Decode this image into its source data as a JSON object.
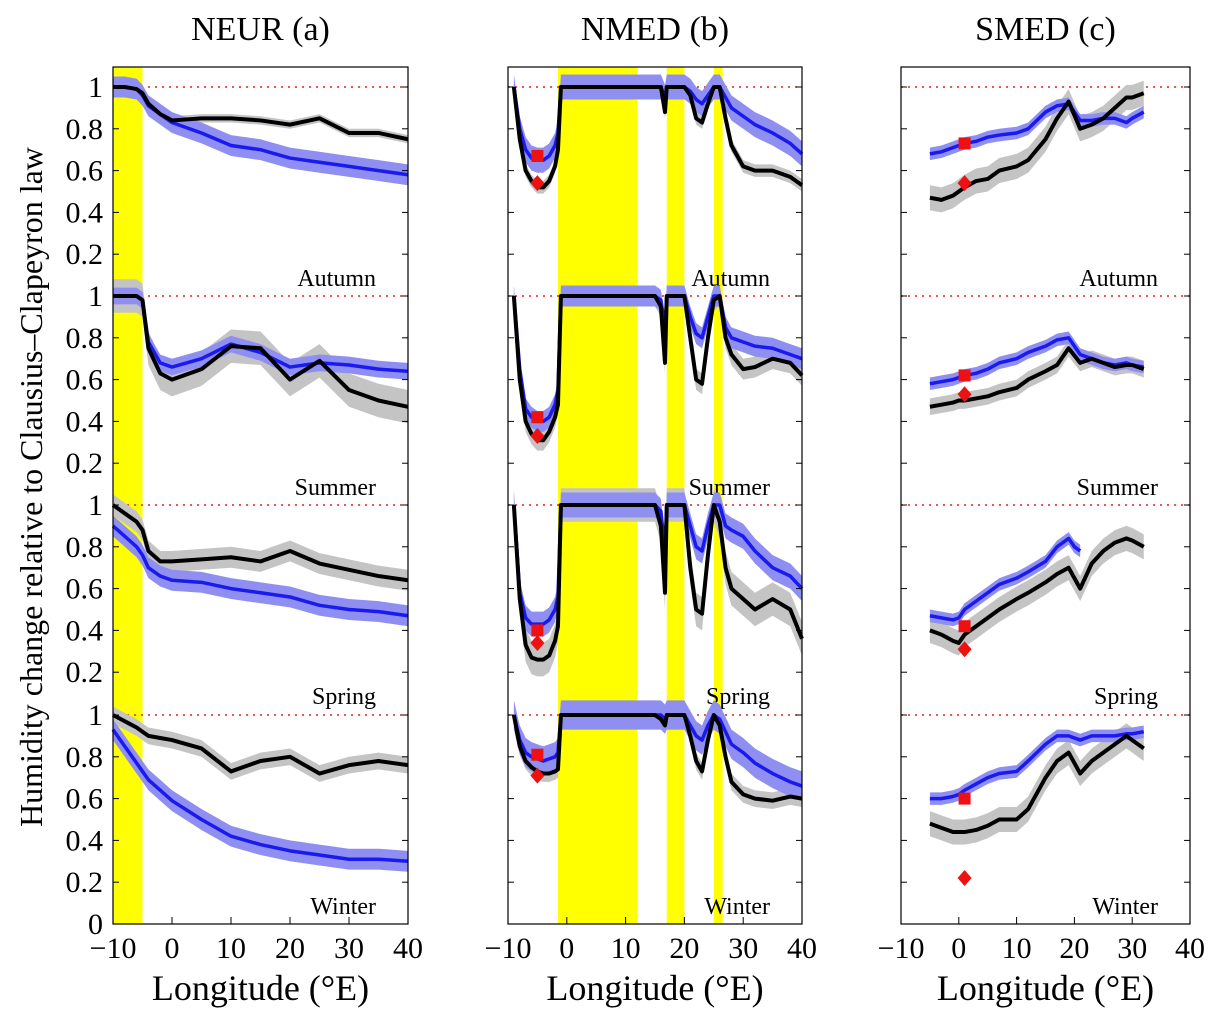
{
  "chart_data": [
    {
      "type": "line",
      "title": "NEUR (a)",
      "xlabel": "Longitude (°E)",
      "ylabel": "Humidity change relative to Clausius–Clapeyron law",
      "xlim": [
        -10,
        40
      ],
      "xticks": [
        "−10",
        "0",
        "10",
        "20",
        "30",
        "40"
      ],
      "yticks": [
        "0",
        "0.2",
        "0.4",
        "0.6",
        "0.8",
        "1"
      ],
      "reference_line": 1,
      "shaded_bands": [
        [
          -10,
          -5
        ]
      ],
      "colors": {
        "blue": "#1a1aee",
        "blue_band": "#8f8ff2",
        "black": "#000000",
        "gray_band": "#c4c4c4",
        "yellow": "#ffff00",
        "marker": "#ee1111"
      },
      "panels": [
        {
          "season": "Autumn",
          "x": [
            -10,
            -8,
            -6,
            -5,
            -4,
            -2,
            0,
            5,
            10,
            15,
            20,
            25,
            30,
            35,
            40
          ],
          "black": [
            1.0,
            1.0,
            0.99,
            0.97,
            0.92,
            0.87,
            0.84,
            0.85,
            0.85,
            0.84,
            0.82,
            0.85,
            0.78,
            0.78,
            0.75
          ],
          "blue": [
            1.0,
            1.0,
            0.99,
            0.96,
            0.91,
            0.87,
            0.83,
            0.78,
            0.72,
            0.7,
            0.66,
            0.64,
            0.62,
            0.6,
            0.58
          ],
          "blue_err": 0.05,
          "black_err": 0.02
        },
        {
          "season": "Summer",
          "x": [
            -10,
            -8,
            -6,
            -5,
            -4,
            -2,
            0,
            5,
            10,
            15,
            20,
            25,
            30,
            35,
            40
          ],
          "black": [
            1.0,
            1.0,
            1.0,
            0.98,
            0.75,
            0.63,
            0.6,
            0.65,
            0.76,
            0.75,
            0.6,
            0.69,
            0.55,
            0.5,
            0.47
          ],
          "blue": [
            1.0,
            1.0,
            1.0,
            0.98,
            0.78,
            0.68,
            0.66,
            0.7,
            0.77,
            0.73,
            0.66,
            0.68,
            0.67,
            0.65,
            0.64
          ],
          "blue_err": 0.04,
          "black_err": 0.08
        },
        {
          "season": "Spring",
          "x": [
            -10,
            -8,
            -6,
            -5,
            -4,
            -2,
            0,
            5,
            10,
            15,
            20,
            25,
            30,
            35,
            40
          ],
          "black": [
            1.0,
            0.96,
            0.92,
            0.88,
            0.78,
            0.73,
            0.73,
            0.74,
            0.75,
            0.73,
            0.78,
            0.72,
            0.69,
            0.66,
            0.64
          ],
          "blue": [
            0.9,
            0.85,
            0.8,
            0.76,
            0.7,
            0.66,
            0.64,
            0.63,
            0.6,
            0.58,
            0.56,
            0.52,
            0.5,
            0.49,
            0.47
          ],
          "blue_err": 0.05,
          "black_err": 0.05
        },
        {
          "season": "Winter",
          "x": [
            -10,
            -8,
            -6,
            -5,
            -4,
            -2,
            0,
            5,
            10,
            15,
            20,
            25,
            30,
            35,
            40
          ],
          "black": [
            1.0,
            0.97,
            0.94,
            0.92,
            0.9,
            0.89,
            0.88,
            0.84,
            0.73,
            0.78,
            0.8,
            0.72,
            0.76,
            0.78,
            0.76
          ],
          "blue": [
            0.93,
            0.85,
            0.77,
            0.73,
            0.69,
            0.64,
            0.59,
            0.5,
            0.42,
            0.38,
            0.35,
            0.33,
            0.31,
            0.31,
            0.3
          ],
          "blue_err": 0.05,
          "black_err": 0.04
        }
      ]
    },
    {
      "type": "line",
      "title": "NMED (b)",
      "xlabel": "Longitude (°E)",
      "xlim": [
        -10,
        40
      ],
      "xticks": [
        "−10",
        "0",
        "10",
        "20",
        "30",
        "40"
      ],
      "reference_line": 1,
      "shaded_bands": [
        [
          -1.5,
          12
        ],
        [
          17,
          20
        ],
        [
          25,
          26.5
        ]
      ],
      "panels": [
        {
          "season": "Autumn",
          "x": [
            -9,
            -8,
            -7,
            -6,
            -5,
            -4,
            -3,
            -2,
            -1.5,
            -1,
            0,
            5,
            10,
            15,
            16,
            16.7,
            17,
            18,
            19,
            20,
            21,
            22,
            23,
            24,
            25,
            26,
            27,
            28,
            30,
            32,
            35,
            38,
            40
          ],
          "black": [
            1.0,
            0.75,
            0.6,
            0.55,
            0.52,
            0.52,
            0.55,
            0.62,
            0.7,
            1.0,
            1.0,
            1.0,
            1.0,
            1.0,
            1.0,
            0.88,
            1.0,
            1.0,
            1.0,
            1.0,
            0.96,
            0.85,
            0.83,
            0.92,
            1.0,
            1.0,
            0.85,
            0.72,
            0.62,
            0.6,
            0.6,
            0.57,
            0.53
          ],
          "blue": [
            1.0,
            0.8,
            0.7,
            0.66,
            0.65,
            0.65,
            0.67,
            0.72,
            0.78,
            1.0,
            1.0,
            1.0,
            1.0,
            1.0,
            1.0,
            0.95,
            1.0,
            1.0,
            1.0,
            1.0,
            0.98,
            0.94,
            0.92,
            0.96,
            1.0,
            1.0,
            0.95,
            0.9,
            0.86,
            0.82,
            0.78,
            0.73,
            0.68
          ],
          "square": [
            -5,
            0.67
          ],
          "diamond": [
            -5,
            0.54
          ],
          "blue_err": 0.06,
          "black_err": 0.03
        },
        {
          "season": "Summer",
          "x": [
            -9,
            -8,
            -7,
            -6,
            -5,
            -4,
            -3,
            -2,
            -1.5,
            -1,
            0,
            5,
            10,
            15,
            16,
            16.7,
            17,
            18,
            19,
            20,
            21,
            22,
            23,
            24,
            25,
            26,
            27,
            28,
            30,
            32,
            35,
            38,
            40
          ],
          "black": [
            1.0,
            0.6,
            0.4,
            0.34,
            0.31,
            0.31,
            0.35,
            0.42,
            0.48,
            1.0,
            1.0,
            1.0,
            1.0,
            1.0,
            0.95,
            0.68,
            1.0,
            1.0,
            1.0,
            1.0,
            0.8,
            0.6,
            0.58,
            0.8,
            0.98,
            1.0,
            0.8,
            0.72,
            0.65,
            0.66,
            0.7,
            0.68,
            0.62
          ],
          "blue": [
            1.0,
            0.65,
            0.46,
            0.42,
            0.4,
            0.4,
            0.42,
            0.48,
            0.55,
            1.0,
            1.0,
            1.0,
            1.0,
            1.0,
            0.98,
            0.85,
            1.0,
            1.0,
            1.0,
            1.0,
            0.9,
            0.82,
            0.8,
            0.9,
            1.0,
            1.0,
            0.85,
            0.8,
            0.78,
            0.76,
            0.75,
            0.72,
            0.7
          ],
          "square": [
            -5,
            0.42
          ],
          "diamond": [
            -5,
            0.33
          ],
          "blue_err": 0.05,
          "black_err": 0.05
        },
        {
          "season": "Spring",
          "x": [
            -9,
            -8,
            -7,
            -6,
            -5,
            -4,
            -3,
            -2,
            -1.5,
            -1,
            0,
            5,
            10,
            15,
            16,
            16.7,
            17,
            18,
            19,
            20,
            21,
            22,
            23,
            24,
            25,
            26,
            27,
            28,
            30,
            32,
            35,
            38,
            40
          ],
          "black": [
            1.0,
            0.55,
            0.33,
            0.27,
            0.26,
            0.26,
            0.28,
            0.35,
            0.42,
            1.0,
            1.0,
            1.0,
            1.0,
            1.0,
            0.9,
            0.58,
            1.0,
            1.0,
            1.0,
            1.0,
            0.7,
            0.5,
            0.48,
            0.76,
            1.0,
            0.92,
            0.7,
            0.6,
            0.55,
            0.5,
            0.55,
            0.5,
            0.36
          ],
          "blue": [
            1.0,
            0.58,
            0.46,
            0.43,
            0.43,
            0.43,
            0.45,
            0.5,
            0.56,
            1.0,
            1.0,
            1.0,
            1.0,
            1.0,
            0.97,
            0.78,
            1.0,
            1.0,
            1.0,
            1.0,
            0.9,
            0.8,
            0.78,
            0.9,
            1.0,
            1.0,
            0.9,
            0.88,
            0.85,
            0.78,
            0.7,
            0.66,
            0.6
          ],
          "square": [
            -5,
            0.4
          ],
          "diamond": [
            -5,
            0.34
          ],
          "blue_err": 0.06,
          "black_err": 0.08
        },
        {
          "season": "Winter",
          "x": [
            -9,
            -8,
            -7,
            -6,
            -5,
            -4,
            -3,
            -2,
            -1.5,
            -1,
            0,
            5,
            10,
            15,
            16,
            16.7,
            17,
            18,
            19,
            20,
            21,
            22,
            23,
            24,
            25,
            26,
            27,
            28,
            30,
            32,
            35,
            38,
            40
          ],
          "black": [
            1.0,
            0.85,
            0.78,
            0.75,
            0.73,
            0.72,
            0.72,
            0.73,
            0.74,
            1.0,
            1.0,
            1.0,
            1.0,
            1.0,
            0.98,
            0.95,
            1.0,
            1.0,
            1.0,
            1.0,
            0.9,
            0.78,
            0.73,
            0.88,
            1.0,
            0.95,
            0.8,
            0.68,
            0.62,
            0.6,
            0.59,
            0.61,
            0.6
          ],
          "blue": [
            1.0,
            0.88,
            0.82,
            0.8,
            0.79,
            0.78,
            0.79,
            0.8,
            0.82,
            1.0,
            1.0,
            1.0,
            1.0,
            1.0,
            1.0,
            0.98,
            1.0,
            1.0,
            1.0,
            1.0,
            0.95,
            0.9,
            0.88,
            0.95,
            1.0,
            0.98,
            0.92,
            0.86,
            0.82,
            0.77,
            0.72,
            0.68,
            0.66
          ],
          "square": [
            -5,
            0.81
          ],
          "diamond": [
            -5,
            0.71
          ],
          "blue_err": 0.07,
          "black_err": 0.04
        }
      ]
    },
    {
      "type": "line",
      "title": "SMED (c)",
      "xlabel": "Longitude (°E)",
      "xlim": [
        -10,
        40
      ],
      "xticks": [
        "−10",
        "0",
        "10",
        "20",
        "30",
        "40"
      ],
      "reference_line": 1,
      "shaded_bands": [],
      "panels": [
        {
          "season": "Autumn",
          "x": [
            -5,
            -3,
            -1,
            0,
            1,
            3,
            5,
            7,
            10,
            12,
            15,
            17,
            19,
            21,
            23,
            25,
            27,
            29,
            30,
            32
          ],
          "black": [
            0.47,
            0.46,
            0.48,
            0.5,
            0.52,
            0.55,
            0.56,
            0.6,
            0.62,
            0.65,
            0.75,
            0.85,
            0.93,
            0.8,
            0.82,
            0.85,
            0.9,
            0.95,
            0.95,
            0.97
          ],
          "blue": [
            0.68,
            0.69,
            0.71,
            0.72,
            0.73,
            0.74,
            0.76,
            0.77,
            0.78,
            0.8,
            0.88,
            0.91,
            0.92,
            0.84,
            0.84,
            0.85,
            0.85,
            0.83,
            0.85,
            0.88
          ],
          "square": [
            1,
            0.73
          ],
          "diamond": [
            1,
            0.54
          ],
          "blue_err": 0.03,
          "black_err": 0.06
        },
        {
          "season": "Summer",
          "x": [
            -5,
            -3,
            -1,
            0,
            1,
            3,
            5,
            7,
            10,
            12,
            15,
            17,
            19,
            21,
            23,
            25,
            27,
            29,
            30,
            32
          ],
          "black": [
            0.47,
            0.48,
            0.49,
            0.5,
            0.5,
            0.51,
            0.52,
            0.54,
            0.56,
            0.6,
            0.64,
            0.67,
            0.75,
            0.68,
            0.7,
            0.68,
            0.66,
            0.67,
            0.67,
            0.65
          ],
          "blue": [
            0.58,
            0.59,
            0.6,
            0.61,
            0.62,
            0.63,
            0.65,
            0.68,
            0.7,
            0.73,
            0.76,
            0.79,
            0.8,
            0.72,
            0.7,
            0.68,
            0.67,
            0.68,
            0.67,
            0.66
          ],
          "square": [
            1,
            0.62
          ],
          "diamond": [
            1,
            0.53
          ],
          "blue_err": 0.03,
          "black_err": 0.04
        },
        {
          "season": "Spring",
          "x": [
            -5,
            -3,
            -1,
            0,
            1,
            3,
            5,
            7,
            10,
            12,
            15,
            17,
            19,
            20,
            21,
            23,
            25,
            27,
            29,
            30,
            32
          ],
          "black": [
            0.4,
            0.38,
            0.35,
            0.34,
            0.38,
            0.42,
            0.46,
            0.5,
            0.55,
            0.58,
            0.63,
            0.67,
            0.7,
            0.65,
            0.6,
            0.72,
            0.78,
            0.82,
            0.84,
            0.83,
            0.8
          ],
          "blue": [
            0.47,
            0.46,
            0.45,
            0.46,
            0.5,
            0.54,
            0.58,
            0.62,
            0.65,
            0.68,
            0.73,
            0.8,
            0.84,
            0.8,
            0.78,
            null,
            null,
            null,
            null,
            null,
            null
          ],
          "square": [
            1,
            0.42
          ],
          "diamond": [
            1,
            0.31
          ],
          "blue_err": 0.03,
          "black_err": 0.06
        },
        {
          "season": "Winter",
          "x": [
            -5,
            -3,
            -1,
            0,
            1,
            3,
            5,
            7,
            10,
            12,
            15,
            17,
            19,
            21,
            23,
            25,
            27,
            29,
            30,
            32
          ],
          "black": [
            0.48,
            0.46,
            0.44,
            0.44,
            0.44,
            0.45,
            0.47,
            0.5,
            0.5,
            0.55,
            0.7,
            0.78,
            0.82,
            0.72,
            0.78,
            0.82,
            0.86,
            0.9,
            0.88,
            0.84
          ],
          "blue": [
            0.6,
            0.6,
            0.61,
            0.62,
            0.64,
            0.67,
            0.7,
            0.72,
            0.73,
            0.78,
            0.86,
            0.9,
            0.9,
            0.88,
            0.9,
            0.9,
            0.9,
            0.91,
            0.91,
            0.92
          ],
          "square": [
            1,
            0.6
          ],
          "diamond": [
            1,
            0.22
          ],
          "blue_err": 0.03,
          "black_err": 0.06
        }
      ]
    }
  ]
}
